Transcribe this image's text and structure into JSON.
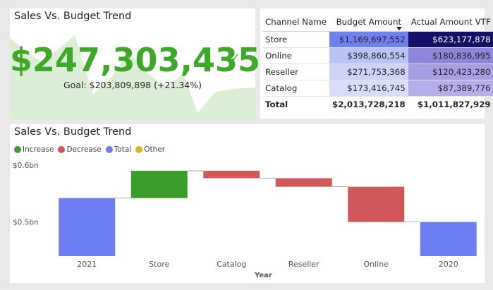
{
  "kpi": {
    "title": "Sales Vs. Budget Trend",
    "value": "$247,303,435",
    "goal": "Goal: $203,809,898 (+21.34%)",
    "check_icon": "checkmark-icon",
    "accent": "#3fa82a"
  },
  "matrix": {
    "headers": [
      "Channel Name",
      "Budget Amount",
      "Actual Amount VTF"
    ],
    "rows": [
      {
        "channel": "Store",
        "budget": "$1,169,697,552",
        "actual": "$623,177,878",
        "budget_color": "#6d82f0",
        "actual_color": "#14106a"
      },
      {
        "channel": "Online",
        "budget": "$398,860,554",
        "actual": "$180,836,995",
        "budget_color": "#b8c3f6",
        "actual_color": "#8e86da"
      },
      {
        "channel": "Reseller",
        "budget": "$271,753,368",
        "actual": "$120,423,280",
        "budget_color": "#cdd4f8",
        "actual_color": "#a79fe4"
      },
      {
        "channel": "Catalog",
        "budget": "$173,416,745",
        "actual": "$87,389,776",
        "budget_color": "#d8ddf9",
        "actual_color": "#b4aee9"
      }
    ],
    "total": {
      "label": "Total",
      "budget": "$2,013,728,218",
      "actual": "$1,011,827,929"
    }
  },
  "waterfall": {
    "title": "Sales Vs. Budget Trend",
    "legend": [
      {
        "label": "Increase",
        "color": "#3a9c2a"
      },
      {
        "label": "Decrease",
        "color": "#d0585b"
      },
      {
        "label": "Total",
        "color": "#6c7ff2"
      },
      {
        "label": "Other",
        "color": "#d4b522"
      }
    ]
  },
  "chart_data": {
    "type": "waterfall",
    "title": "Sales Vs. Budget Trend",
    "xlabel": "Year",
    "ylabel": "",
    "ylim": [
      0.44,
      0.6
    ],
    "y_ticks": [
      0.5,
      0.6
    ],
    "y_tick_labels": [
      "$0.5bn",
      "$0.6bn"
    ],
    "categories": [
      "2021",
      "Store",
      "Catalog",
      "Reseller",
      "Online",
      "2020"
    ],
    "steps": [
      {
        "category": "2021",
        "kind": "Total",
        "start": 0,
        "end": 0.542
      },
      {
        "category": "Store",
        "kind": "Increase",
        "start": 0.542,
        "end": 0.59
      },
      {
        "category": "Catalog",
        "kind": "Decrease",
        "start": 0.59,
        "end": 0.577
      },
      {
        "category": "Reseller",
        "kind": "Decrease",
        "start": 0.577,
        "end": 0.562
      },
      {
        "category": "Online",
        "kind": "Decrease",
        "start": 0.562,
        "end": 0.5
      },
      {
        "category": "2020",
        "kind": "Total",
        "start": 0,
        "end": 0.5
      }
    ]
  }
}
